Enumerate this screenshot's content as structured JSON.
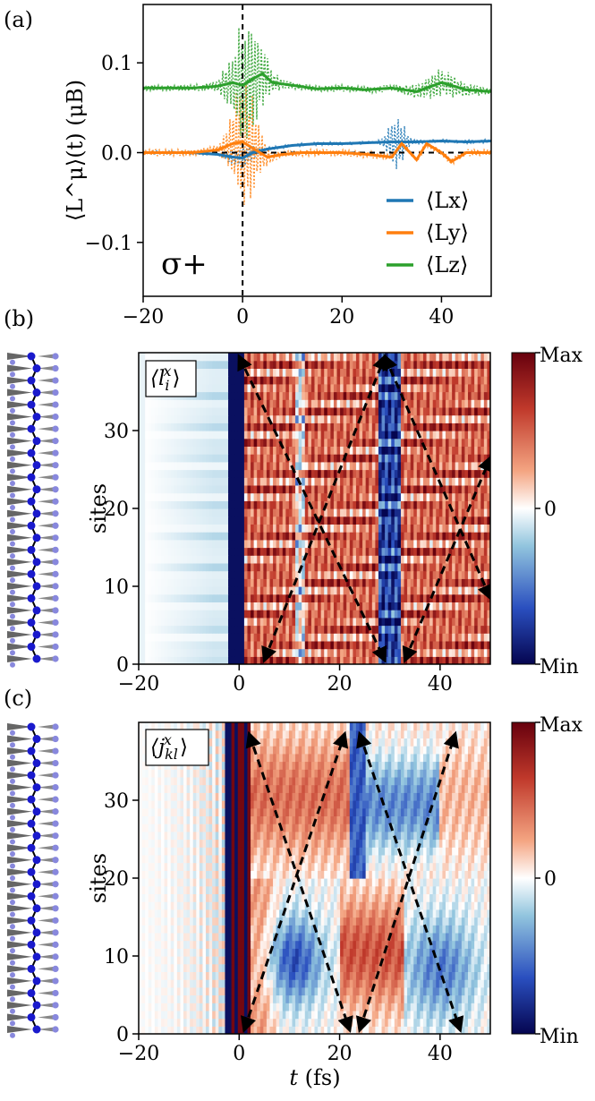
{
  "chart_data": [
    {
      "panel": "(a)",
      "type": "line",
      "ylabel": "⟨L^μ⟩(t) (μB)",
      "xlim": [
        -20,
        50
      ],
      "ylim": [
        -0.16,
        0.165
      ],
      "xticks": [
        "−20",
        "0",
        "20",
        "40"
      ],
      "xtick_values": [
        -20,
        0,
        20,
        40
      ],
      "yticks": [
        "0.1",
        "0.0",
        "−0.1"
      ],
      "ytick_values": [
        0.1,
        0.0,
        -0.1
      ],
      "annotation": "σ+",
      "vline_x": 0,
      "hline_y": 0,
      "series": [
        {
          "name": "⟨L^x⟩",
          "legend": "⟨Lx⟩",
          "color": "#1f77b4",
          "x": [
            -20,
            -10,
            -5,
            -2,
            0,
            2,
            5,
            10,
            15,
            20,
            25,
            30,
            35,
            40,
            45,
            50
          ],
          "values": [
            0.0,
            0.0,
            -0.002,
            -0.005,
            -0.006,
            0.0,
            0.004,
            0.008,
            0.01,
            0.01,
            0.011,
            0.012,
            0.012,
            0.013,
            0.012,
            0.013
          ]
        },
        {
          "name": "⟨L^y⟩",
          "legend": "⟨Ly⟩",
          "color": "#ff7f0e",
          "x": [
            -20,
            -10,
            -5,
            -2,
            0,
            2,
            5,
            8,
            12,
            16,
            20,
            25,
            30,
            32,
            35,
            37,
            40,
            42,
            45,
            50
          ],
          "values": [
            0.0,
            0.0,
            0.003,
            0.01,
            0.012,
            0.005,
            -0.005,
            -0.002,
            0.0,
            0.0,
            0.0,
            -0.002,
            -0.005,
            0.01,
            -0.008,
            0.01,
            0.0,
            -0.01,
            0.0,
            0.0
          ]
        },
        {
          "name": "⟨L^z⟩",
          "legend": "⟨Lz⟩",
          "color": "#2ca02c",
          "x": [
            -20,
            -10,
            -5,
            -2,
            0,
            2,
            4,
            6,
            10,
            15,
            20,
            25,
            30,
            35,
            40,
            45,
            50
          ],
          "values": [
            0.072,
            0.072,
            0.074,
            0.078,
            0.075,
            0.082,
            0.088,
            0.078,
            0.075,
            0.071,
            0.072,
            0.07,
            0.072,
            0.068,
            0.078,
            0.07,
            0.068
          ]
        }
      ]
    },
    {
      "panel": "(b)",
      "type": "heatmap",
      "label": "⟨l_i^x⟩",
      "label_main": "⟨l",
      "label_sub": "i",
      "label_sup": "x",
      "label_end": "⟩",
      "ylabel": "sites",
      "xlim": [
        -20,
        50
      ],
      "ylim": [
        0,
        39
      ],
      "xticks": [
        "−20",
        "0",
        "20",
        "40"
      ],
      "xtick_values": [
        -20,
        0,
        20,
        40
      ],
      "yticks": [
        "0",
        "10",
        "20",
        "30"
      ],
      "ytick_values": [
        0,
        10,
        20,
        30
      ],
      "colorbar": {
        "max": "Max",
        "mid": "0",
        "min": "Min"
      },
      "light_cone_paths": [
        [
          [
            5,
            0
          ],
          [
            29,
            39
          ]
        ],
        [
          [
            0,
            39
          ],
          [
            29,
            0
          ]
        ],
        [
          [
            33,
            0
          ],
          [
            50,
            26
          ]
        ],
        [
          [
            29,
            39
          ],
          [
            50,
            8
          ]
        ]
      ]
    },
    {
      "panel": "(c)",
      "type": "heatmap",
      "label": "⟨j_kl^x⟩",
      "label_main": "⟨j",
      "label_sub": "kl",
      "label_sup": "x",
      "label_end": "⟩",
      "ylabel": "sites",
      "xlabel": "t (fs)",
      "xlabel_var": "t",
      "xlabel_unit": "(fs)",
      "xlim": [
        -20,
        50
      ],
      "ylim": [
        0,
        39
      ],
      "xticks": [
        "−20",
        "0",
        "20",
        "40"
      ],
      "xtick_values": [
        -20,
        0,
        20,
        40
      ],
      "yticks": [
        "0",
        "10",
        "20",
        "30"
      ],
      "ytick_values": [
        0,
        10,
        20,
        30
      ],
      "colorbar": {
        "max": "Max",
        "mid": "0",
        "min": "Min"
      },
      "light_cone_paths": [
        [
          [
            1,
            0
          ],
          [
            21,
            38
          ]
        ],
        [
          [
            2,
            38
          ],
          [
            22,
            0
          ]
        ],
        [
          [
            24,
            0
          ],
          [
            43,
            38
          ]
        ],
        [
          [
            24,
            38
          ],
          [
            44,
            0
          ]
        ]
      ]
    }
  ],
  "colors": {
    "red": "#c0392b",
    "blue": "#1f3fb4",
    "chain_dark": "#1a1acc",
    "chain_light": "#8888dd",
    "arrow_gray": "#666666"
  }
}
